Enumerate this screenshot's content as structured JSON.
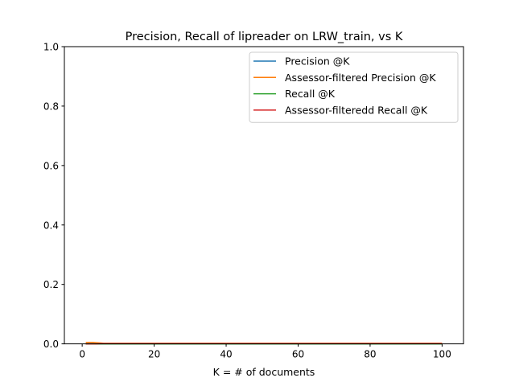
{
  "chart_data": {
    "type": "line",
    "title": "Precision, Recall of lipreader on LRW_train, vs K",
    "xlabel": "K = # of documents",
    "ylabel": "",
    "xlim": [
      -4.95,
      105.95
    ],
    "ylim": [
      0.0,
      1.0
    ],
    "xticks": [
      0,
      20,
      40,
      60,
      80,
      100
    ],
    "xtick_labels": [
      "0",
      "20",
      "40",
      "60",
      "80",
      "100"
    ],
    "yticks": [
      0.0,
      0.2,
      0.4,
      0.6,
      0.8,
      1.0
    ],
    "ytick_labels": [
      "0.0",
      "0.2",
      "0.4",
      "0.6",
      "0.8",
      "1.0"
    ],
    "grid": false,
    "legend_position": "top-right",
    "series": [
      {
        "name": "Precision @K",
        "color": "#1f77b4",
        "x": [
          1,
          2,
          3,
          4,
          5,
          6,
          8,
          10,
          20,
          40,
          60,
          80,
          100
        ],
        "y": [
          0.0,
          0.0,
          0.0,
          0.0,
          0.0,
          0.0,
          0.0,
          0.0,
          0.0,
          0.0,
          0.0,
          0.0,
          0.0
        ]
      },
      {
        "name": "Assessor-filtered Precision @K",
        "color": "#ff7f0e",
        "x": [
          1,
          2,
          3,
          4,
          5,
          6,
          8,
          10,
          20,
          40,
          60,
          80,
          100
        ],
        "y": [
          0.005,
          0.005,
          0.005,
          0.004,
          0.003,
          0.002,
          0.002,
          0.002,
          0.002,
          0.002,
          0.002,
          0.002,
          0.002
        ]
      },
      {
        "name": "Recall @K",
        "color": "#2ca02c",
        "x": [
          1,
          2,
          3,
          4,
          5,
          6,
          8,
          10,
          20,
          40,
          60,
          80,
          100
        ],
        "y": [
          0.0,
          0.0,
          0.0,
          0.0,
          0.0,
          0.0,
          0.0,
          0.0,
          0.0,
          0.0,
          0.0,
          0.0,
          0.0
        ]
      },
      {
        "name": "Assessor-filteredd Recall @K",
        "color": "#d62728",
        "x": [
          1,
          2,
          3,
          4,
          5,
          6,
          8,
          10,
          20,
          40,
          60,
          80,
          100
        ],
        "y": [
          0.0,
          0.0,
          0.0,
          0.0,
          0.001,
          0.001,
          0.001,
          0.001,
          0.001,
          0.001,
          0.001,
          0.001,
          0.001
        ]
      }
    ]
  }
}
